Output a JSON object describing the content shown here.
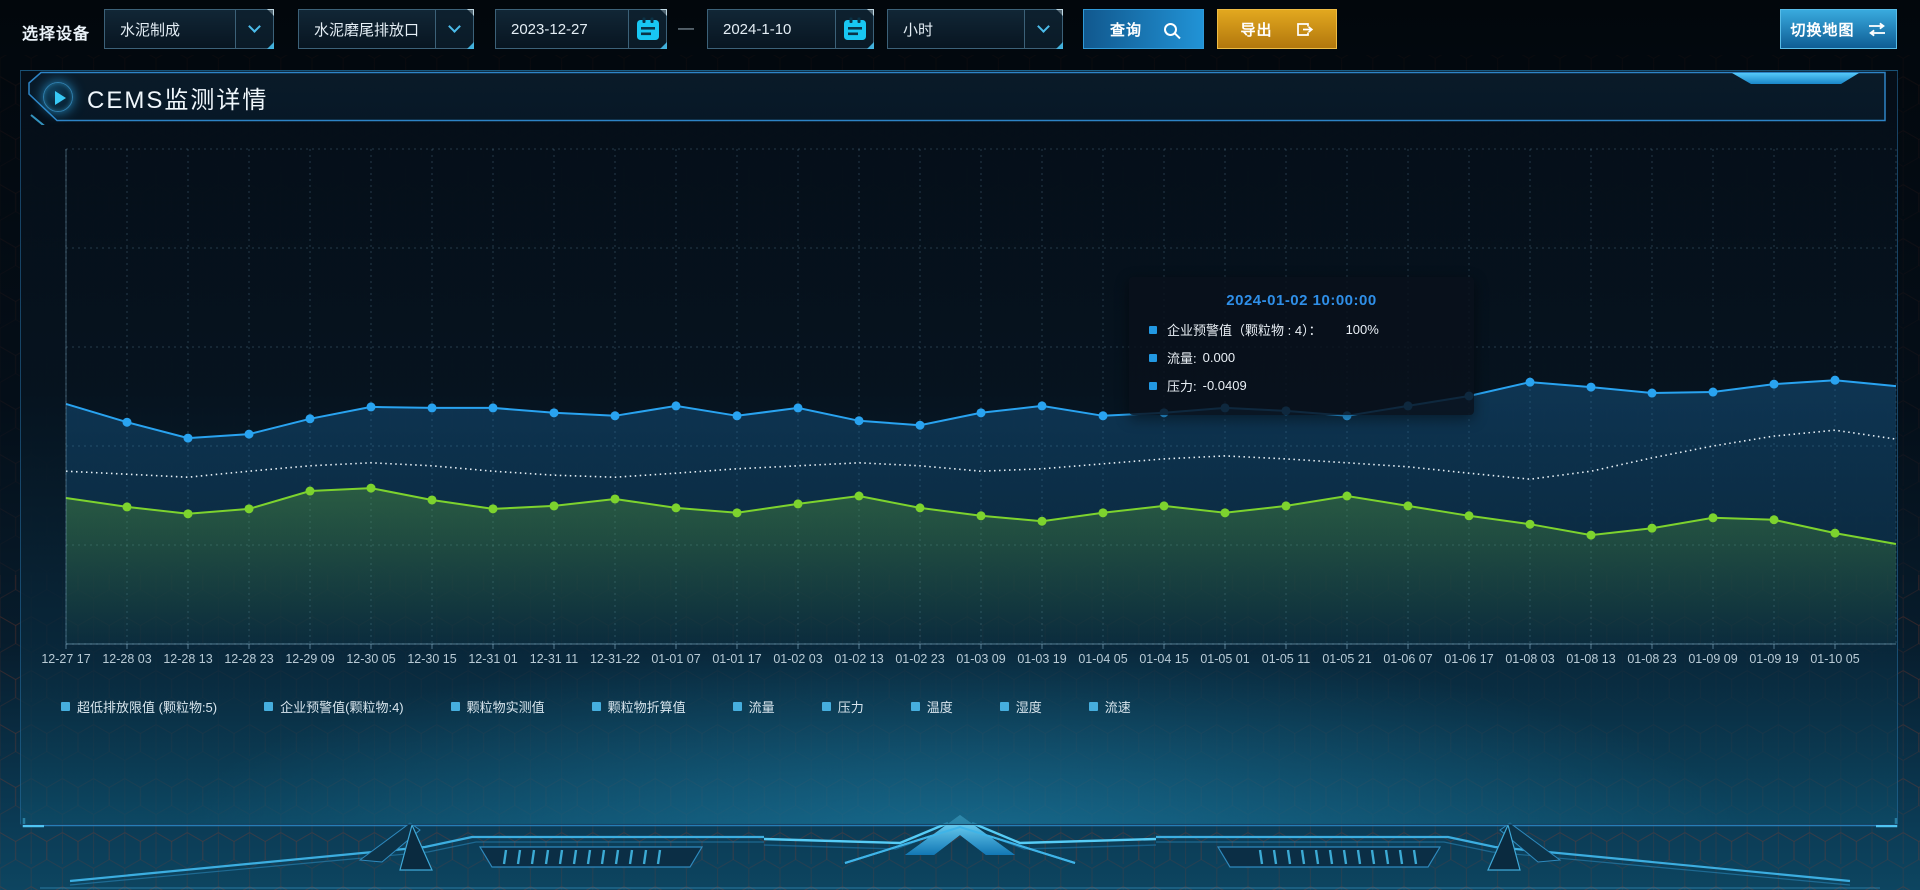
{
  "toolbar": {
    "device_label": "选择设备",
    "device_select": "水泥制成",
    "outlet_select": "水泥磨尾排放口",
    "date_start": "2023-12-27",
    "date_separator": "—",
    "date_end": "2024-1-10",
    "interval_select": "小时",
    "query_label": "查询",
    "export_label": "导出",
    "switch_map_label": "切换地图"
  },
  "panel": {
    "title": "CEMS监测详情"
  },
  "tooltip": {
    "title": "2024-01-02 10:00:00",
    "rows": [
      {
        "label": "企业预警值（颗粒物 : 4）：",
        "value": "100%"
      },
      {
        "label": "流量:",
        "value": "0.000"
      },
      {
        "label": "压力:",
        "value": "-0.0409"
      }
    ]
  },
  "legend": [
    "超低排放限值 (颗粒物:5)",
    "企业预警值(颗粒物:4)",
    "颗粒物实测值",
    "颗粒物折算值",
    "流量",
    "压力",
    "温度",
    "湿度",
    "流速"
  ],
  "colors": {
    "accent_blue": "#2193d6",
    "export_orange": "#d89010",
    "tooltip_title": "#2f8fe8",
    "legend_marker": "#46aede"
  },
  "chart_data": {
    "type": "line",
    "title": "CEMS监测详情",
    "grid": "dashed",
    "legend_position": "bottom",
    "y_axis_visible": false,
    "note": "No y-axis tick labels are shown on screen; series values are relative heights in % of plot height, estimated from pixels.",
    "x_tick_labels": [
      "12-27 17",
      "12-28 03",
      "12-28 13",
      "12-28 23",
      "12-29 09",
      "12-30 05",
      "12-30 15",
      "12-31 01",
      "12-31 11",
      "12-31-22",
      "01-01 07",
      "01-01 17",
      "01-02 03",
      "01-02 13",
      "01-02 23",
      "01-03 09",
      "01-03 19",
      "01-04 05",
      "01-04 15",
      "01-05 01",
      "01-05 11",
      "01-05 21",
      "01-06 07",
      "01-06 17",
      "01-08 03",
      "01-08 13",
      "01-08 23",
      "01-09 09",
      "01-09 19",
      "01-10 05"
    ],
    "series": [
      {
        "name": "流量",
        "color": "#29a3f0",
        "style": "solid",
        "symbols": true,
        "area": true,
        "values": [
          48.5,
          44.8,
          41.6,
          42.4,
          45.5,
          47.9,
          47.7,
          47.7,
          46.7,
          46.1,
          48.1,
          46.1,
          47.7,
          45.1,
          44.2,
          46.7,
          48.1,
          46.1,
          46.7,
          47.7,
          47.1,
          46.1,
          48.1,
          50.1,
          52.9,
          51.9,
          50.7,
          50.9,
          52.5,
          53.3,
          52.1
        ]
      },
      {
        "name": "企业预警值(颗粒物:4)",
        "color": "#e9f2f8",
        "style": "dotted",
        "symbols": false,
        "area": false,
        "values": [
          34.9,
          34.3,
          33.7,
          34.9,
          36.0,
          36.6,
          36.0,
          34.9,
          34.1,
          33.7,
          34.5,
          35.4,
          36.0,
          36.6,
          36.0,
          34.9,
          35.4,
          36.4,
          37.4,
          38.0,
          37.4,
          36.6,
          35.8,
          34.5,
          33.3,
          34.9,
          37.6,
          40.0,
          42.0,
          43.2,
          41.4
        ]
      },
      {
        "name": "压力",
        "color": "#7dd32e",
        "style": "solid",
        "symbols": true,
        "area": true,
        "values": [
          29.5,
          27.7,
          26.3,
          27.3,
          30.9,
          31.5,
          29.1,
          27.3,
          27.9,
          29.3,
          27.5,
          26.5,
          28.3,
          29.9,
          27.5,
          25.9,
          24.8,
          26.5,
          27.9,
          26.5,
          27.9,
          29.9,
          27.9,
          25.9,
          24.2,
          22.0,
          23.4,
          25.5,
          25.1,
          22.4,
          20.2
        ]
      }
    ]
  }
}
